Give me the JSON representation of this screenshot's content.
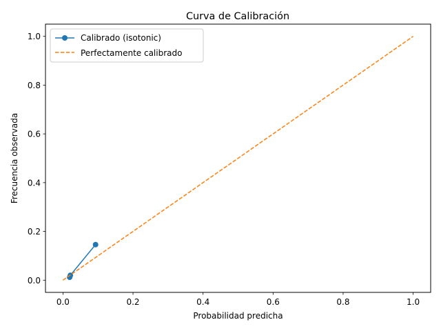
{
  "chart_data": {
    "type": "line",
    "title": "Curva de Calibración",
    "xlabel": "Probabilidad predicha",
    "ylabel": "Frecuencia observada",
    "xlim": [
      -0.05,
      1.05
    ],
    "ylim": [
      -0.05,
      1.05
    ],
    "xticks": [
      0.0,
      0.2,
      0.4,
      0.6,
      0.8,
      1.0
    ],
    "yticks": [
      0.0,
      0.2,
      0.4,
      0.6,
      0.8,
      1.0
    ],
    "grid": false,
    "legend_position": "top-left",
    "series": [
      {
        "name": "Calibrado (isotonic)",
        "style": "solid-line-with-markers",
        "color": "#1f77b4",
        "x": [
          0.019,
          0.021,
          0.093
        ],
        "y": [
          0.012,
          0.02,
          0.146
        ]
      },
      {
        "name": "Perfectamente calibrado",
        "style": "dashed",
        "color": "#ff7f0e",
        "x": [
          0.0,
          1.0
        ],
        "y": [
          0.0,
          1.0
        ]
      }
    ]
  }
}
